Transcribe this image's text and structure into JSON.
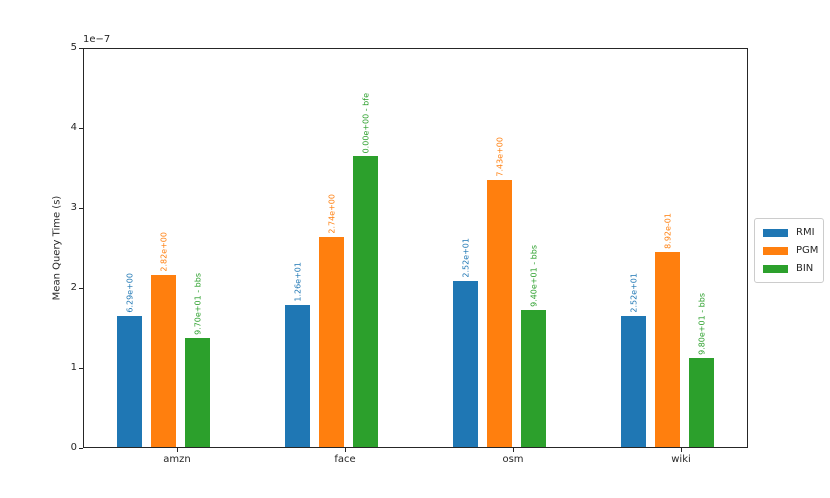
{
  "chart_data": {
    "type": "bar",
    "title": "",
    "xlabel": "",
    "ylabel": "Mean Query Time (s)",
    "y_offset_text": "1e−7",
    "y_unit_scale": "1e-7 seconds",
    "ylim": [
      0,
      5
    ],
    "yticks": [
      0,
      1,
      2,
      3,
      4,
      5
    ],
    "grid": "off",
    "legend_position": "outside-right",
    "categories": [
      "amzn",
      "face",
      "osm",
      "wiki"
    ],
    "series": [
      {
        "name": "RMI",
        "color": "#1f77b4",
        "values": [
          1.64,
          1.78,
          2.08,
          1.64
        ],
        "bar_labels": [
          "6.29e+00",
          "1.26e+01",
          "2.52e+01",
          "2.52e+01"
        ]
      },
      {
        "name": "PGM",
        "color": "#ff7f0e",
        "values": [
          2.15,
          2.62,
          3.34,
          2.44
        ],
        "bar_labels": [
          "2.82e+00",
          "2.74e+00",
          "7.43e+00",
          "8.92e-01"
        ]
      },
      {
        "name": "BIN",
        "color": "#2ca02c",
        "values": [
          1.36,
          3.64,
          1.71,
          1.11
        ],
        "bar_labels": [
          "9.70e+01 - bbs",
          "0.00e+00 - bfe",
          "9.40e+01 - bbs",
          "9.80e+01 - bbs"
        ]
      }
    ]
  }
}
